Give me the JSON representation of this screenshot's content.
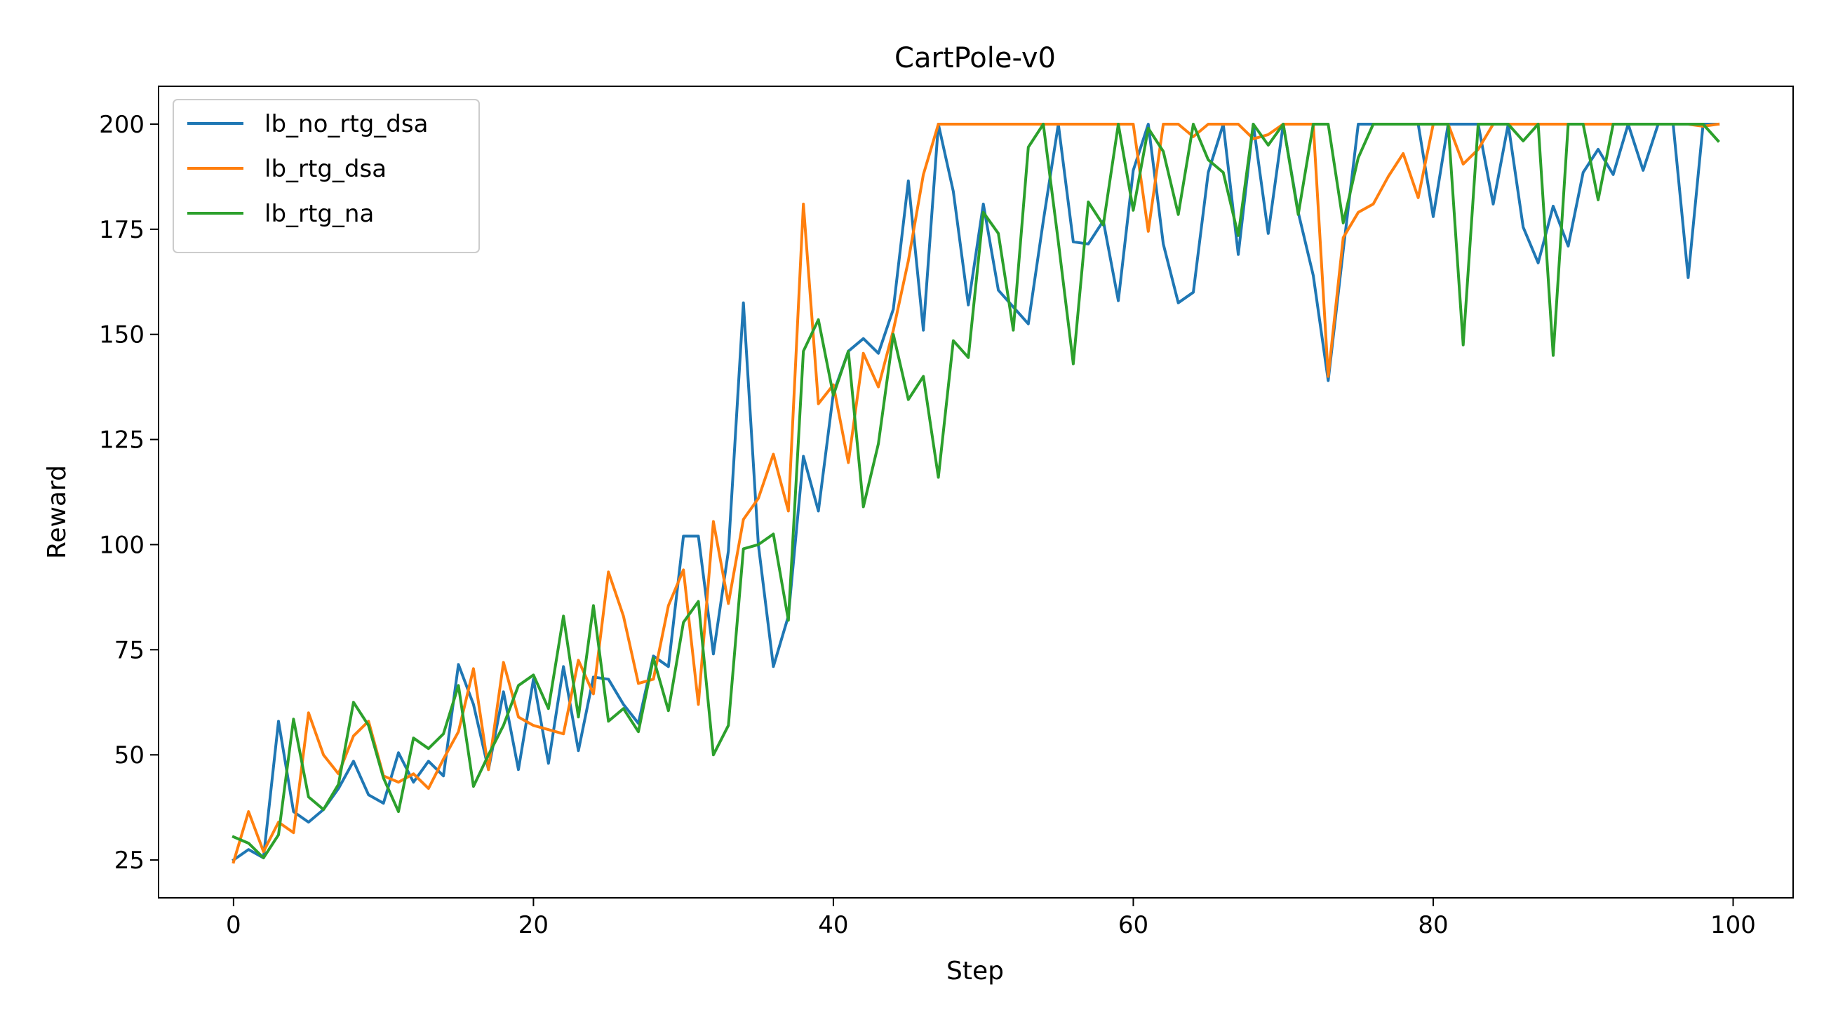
{
  "chart_data": {
    "type": "line",
    "title": "CartPole-v0",
    "xlabel": "Step",
    "ylabel": "Reward",
    "xlim": [
      -5,
      104
    ],
    "ylim": [
      16,
      209
    ],
    "xticks": [
      0,
      20,
      40,
      60,
      80,
      100
    ],
    "xtick_labels": [
      "0",
      "20",
      "40",
      "60",
      "80",
      "100"
    ],
    "yticks": [
      25,
      50,
      75,
      100,
      125,
      150,
      175,
      200
    ],
    "ytick_labels": [
      "25",
      "50",
      "75",
      "100",
      "125",
      "150",
      "175",
      "200"
    ],
    "grid": false,
    "legend_position": "top-left",
    "x": [
      0,
      1,
      2,
      3,
      4,
      5,
      6,
      7,
      8,
      9,
      10,
      11,
      12,
      13,
      14,
      15,
      16,
      17,
      18,
      19,
      20,
      21,
      22,
      23,
      24,
      25,
      26,
      27,
      28,
      29,
      30,
      31,
      32,
      33,
      34,
      35,
      36,
      37,
      38,
      39,
      40,
      41,
      42,
      43,
      44,
      45,
      46,
      47,
      48,
      49,
      50,
      51,
      52,
      53,
      54,
      55,
      56,
      57,
      58,
      59,
      60,
      61,
      62,
      63,
      64,
      65,
      66,
      67,
      68,
      69,
      70,
      71,
      72,
      73,
      74,
      75,
      76,
      77,
      78,
      79,
      80,
      81,
      82,
      83,
      84,
      85,
      86,
      87,
      88,
      89,
      90,
      91,
      92,
      93,
      94,
      95,
      96,
      97,
      98,
      99
    ],
    "series": [
      {
        "name": "lb_no_rtg_dsa",
        "color": "#1f77b4",
        "values": [
          25,
          27.5,
          25.5,
          58,
          36.5,
          34,
          37,
          42,
          48.5,
          40.5,
          38.5,
          50.5,
          43.5,
          48.5,
          45,
          71.5,
          62,
          46.5,
          65,
          46.5,
          68,
          48,
          71,
          51,
          68.5,
          68,
          62,
          57.5,
          73.5,
          71,
          102,
          102,
          74,
          98.5,
          157.5,
          100,
          71,
          83,
          121,
          108,
          136,
          146,
          149,
          145.5,
          156,
          186.5,
          151,
          200,
          184,
          157,
          181,
          160.5,
          156.5,
          152.5,
          177,
          200,
          172,
          171.5,
          177,
          158,
          189,
          200,
          171.5,
          157.5,
          160,
          188.5,
          200,
          169,
          200,
          174,
          200,
          179,
          164,
          139,
          170,
          200,
          200,
          200,
          200,
          200,
          178,
          200,
          200,
          200,
          181,
          200,
          175.5,
          167,
          180.5,
          171,
          188.5,
          194,
          188,
          200,
          189,
          200,
          200,
          163.5,
          200,
          200
        ]
      },
      {
        "name": "lb_rtg_dsa",
        "color": "#ff7f0e",
        "values": [
          24.5,
          36.5,
          27,
          34,
          31.5,
          60,
          50,
          45.5,
          54.5,
          58,
          45,
          43.5,
          45.5,
          42,
          49,
          55.5,
          70.5,
          46.5,
          72,
          59,
          57,
          56,
          55,
          72.5,
          64.5,
          93.5,
          83,
          67,
          68,
          85.5,
          94,
          62,
          105.5,
          86,
          106,
          111,
          121.5,
          108,
          181,
          133.5,
          138,
          119.5,
          145.5,
          137.5,
          151,
          167.5,
          188,
          200,
          200,
          200,
          200,
          200,
          200,
          200,
          200,
          200,
          200,
          200,
          200,
          200,
          200,
          174.5,
          200,
          200,
          197,
          200,
          200,
          200,
          196.5,
          197.5,
          200,
          200,
          200,
          140,
          173,
          179,
          181,
          187.5,
          193,
          182.5,
          200,
          200,
          190.5,
          194,
          200,
          200,
          200,
          200,
          200,
          200,
          200,
          200,
          200,
          200,
          200,
          200,
          200,
          200,
          199.5,
          200
        ]
      },
      {
        "name": "lb_rtg_na",
        "color": "#2ca02c",
        "values": [
          30.5,
          29,
          25.5,
          31,
          58.5,
          40,
          37,
          43,
          62.5,
          57,
          44.5,
          36.5,
          54,
          51.5,
          55,
          66.5,
          42.5,
          50,
          57,
          66.5,
          69,
          61,
          83,
          59,
          85.5,
          58,
          61,
          55.5,
          73,
          60.5,
          81.5,
          86.5,
          50,
          57,
          99,
          100,
          102.5,
          82,
          146,
          153.5,
          135.5,
          146,
          109,
          124,
          150,
          134.5,
          140,
          116,
          148.5,
          144.5,
          179,
          174,
          151,
          194.5,
          200,
          172,
          143,
          181.5,
          176,
          200,
          179.5,
          199,
          193.5,
          178.5,
          200,
          191.5,
          188.5,
          173.5,
          200,
          195,
          200,
          178.5,
          200,
          200,
          176.5,
          192,
          200,
          200,
          200,
          200,
          200,
          200,
          147.5,
          200,
          200,
          200,
          196,
          200,
          145,
          200,
          200,
          182,
          200,
          200,
          200,
          200,
          200,
          200,
          200,
          196
        ]
      }
    ]
  }
}
